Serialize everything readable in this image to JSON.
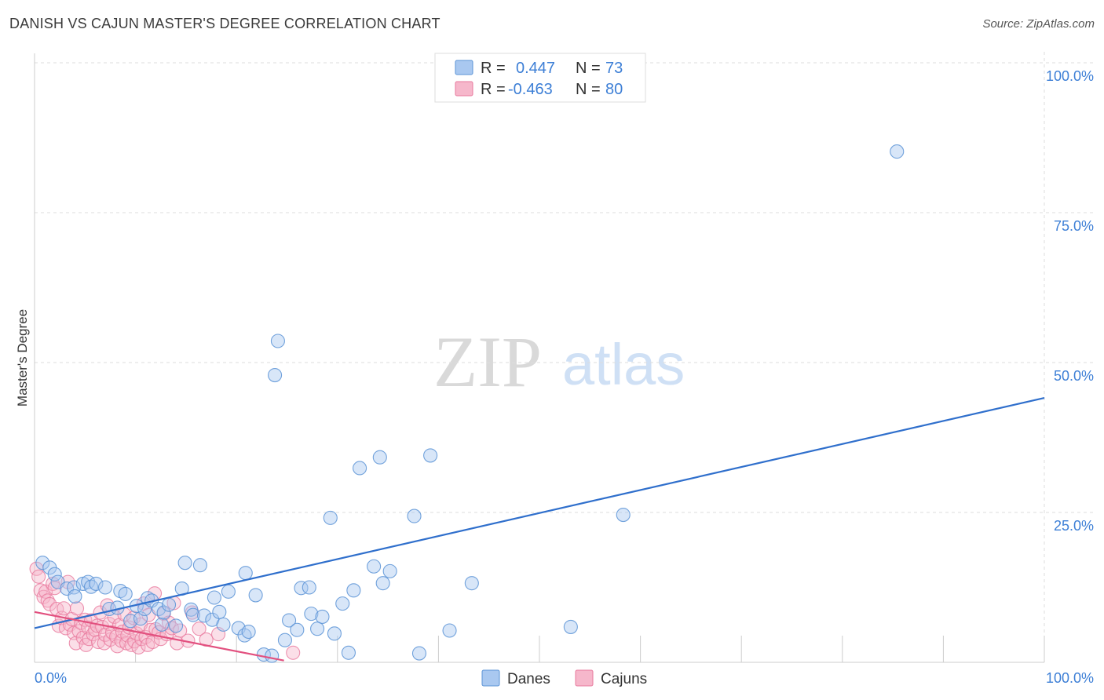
{
  "title": "DANISH VS CAJUN MASTER'S DEGREE CORRELATION CHART",
  "source": "Source: ZipAtlas.com",
  "watermark": {
    "zip": "ZIP",
    "atlas": "atlas"
  },
  "colors": {
    "danes_fill": "#a9c8f0",
    "danes_stroke": "#5b93d6",
    "danes_line": "#2f6fcc",
    "cajuns_fill": "#f6b7cb",
    "cajuns_stroke": "#e8799d",
    "cajuns_line": "#e2507f",
    "tick_blue": "#3d7fd6",
    "grid": "#dddddd"
  },
  "legend": {
    "rows": [
      {
        "r_label": "R =",
        "r_value": "0.447",
        "n_label": "N =",
        "n_value": "73"
      },
      {
        "r_label": "R =",
        "r_value": "-0.463",
        "n_label": "N =",
        "n_value": "80"
      }
    ]
  },
  "bottom_legend": [
    "Danes",
    "Cajuns"
  ],
  "chart_data": {
    "type": "scatter",
    "title": "DANISH VS CAJUN MASTER'S DEGREE CORRELATION CHART",
    "xlabel": "",
    "ylabel": "Master's Degree",
    "xlim": [
      0,
      100
    ],
    "ylim": [
      0,
      100
    ],
    "x_tick_labels": [
      "0.0%",
      "100.0%"
    ],
    "y_tick_labels": [
      "100.0%",
      "75.0%",
      "50.0%",
      "25.0%"
    ],
    "y_ticks": [
      100,
      75,
      50,
      25
    ],
    "grid": true,
    "legend_position": "top-center",
    "series": [
      {
        "name": "Danes",
        "r": 0.447,
        "n": 73,
        "trend": {
          "x": [
            0,
            100
          ],
          "y": [
            5.7,
            44.1
          ]
        },
        "points": [
          [
            0.8,
            16.6
          ],
          [
            1.5,
            15.8
          ],
          [
            2.0,
            14.7
          ],
          [
            2.3,
            13.4
          ],
          [
            3.2,
            12.3
          ],
          [
            3.9,
            12.5
          ],
          [
            4.0,
            11.0
          ],
          [
            4.8,
            13.1
          ],
          [
            5.3,
            13.4
          ],
          [
            5.6,
            12.6
          ],
          [
            6.1,
            13.1
          ],
          [
            7.0,
            12.5
          ],
          [
            7.4,
            8.9
          ],
          [
            8.2,
            9.1
          ],
          [
            8.5,
            11.9
          ],
          [
            9.0,
            11.4
          ],
          [
            9.5,
            6.9
          ],
          [
            10.1,
            9.4
          ],
          [
            10.5,
            7.3
          ],
          [
            10.9,
            8.9
          ],
          [
            11.2,
            10.7
          ],
          [
            11.6,
            10.3
          ],
          [
            12.3,
            8.9
          ],
          [
            12.6,
            6.3
          ],
          [
            12.8,
            8.3
          ],
          [
            13.3,
            9.6
          ],
          [
            14.0,
            6.1
          ],
          [
            14.6,
            12.3
          ],
          [
            14.9,
            16.6
          ],
          [
            15.5,
            8.8
          ],
          [
            15.7,
            7.9
          ],
          [
            16.4,
            16.2
          ],
          [
            16.8,
            7.8
          ],
          [
            17.6,
            7.1
          ],
          [
            17.8,
            10.8
          ],
          [
            18.3,
            8.4
          ],
          [
            18.7,
            6.3
          ],
          [
            19.2,
            11.8
          ],
          [
            20.2,
            5.7
          ],
          [
            20.8,
            4.5
          ],
          [
            20.9,
            14.9
          ],
          [
            21.2,
            5.1
          ],
          [
            21.9,
            11.2
          ],
          [
            22.7,
            1.3
          ],
          [
            23.5,
            1.1
          ],
          [
            24.1,
            53.6
          ],
          [
            24.8,
            3.7
          ],
          [
            23.8,
            47.9
          ],
          [
            25.2,
            7.0
          ],
          [
            26.0,
            5.4
          ],
          [
            26.4,
            12.4
          ],
          [
            27.2,
            12.5
          ],
          [
            27.4,
            8.1
          ],
          [
            28.0,
            5.6
          ],
          [
            28.5,
            7.6
          ],
          [
            29.3,
            24.1
          ],
          [
            29.7,
            4.8
          ],
          [
            30.5,
            9.8
          ],
          [
            31.1,
            1.6
          ],
          [
            31.6,
            12.0
          ],
          [
            32.2,
            32.4
          ],
          [
            33.6,
            16.0
          ],
          [
            34.2,
            34.2
          ],
          [
            34.5,
            13.2
          ],
          [
            35.2,
            15.2
          ],
          [
            37.6,
            24.4
          ],
          [
            38.1,
            1.5
          ],
          [
            39.2,
            34.5
          ],
          [
            41.1,
            5.3
          ],
          [
            43.3,
            13.2
          ],
          [
            53.1,
            5.9
          ],
          [
            58.3,
            24.6
          ],
          [
            85.4,
            85.2
          ]
        ]
      },
      {
        "name": "Cajuns",
        "r": -0.463,
        "n": 80,
        "trend": {
          "x": [
            0,
            24.7
          ],
          "y": [
            8.4,
            0.3
          ]
        },
        "points": [
          [
            0.2,
            15.6
          ],
          [
            0.4,
            14.3
          ],
          [
            0.6,
            12.0
          ],
          [
            0.9,
            10.9
          ],
          [
            1.1,
            11.8
          ],
          [
            1.3,
            10.3
          ],
          [
            1.5,
            9.7
          ],
          [
            1.8,
            13.1
          ],
          [
            2.0,
            12.4
          ],
          [
            2.2,
            8.9
          ],
          [
            2.4,
            6.1
          ],
          [
            2.7,
            7.4
          ],
          [
            2.9,
            9.0
          ],
          [
            3.1,
            5.7
          ],
          [
            3.3,
            13.4
          ],
          [
            3.5,
            6.3
          ],
          [
            3.7,
            7.2
          ],
          [
            3.9,
            4.9
          ],
          [
            4.1,
            3.2
          ],
          [
            4.2,
            9.0
          ],
          [
            4.4,
            5.2
          ],
          [
            4.6,
            6.6
          ],
          [
            4.8,
            4.1
          ],
          [
            5.0,
            7.1
          ],
          [
            5.1,
            2.9
          ],
          [
            5.3,
            5.8
          ],
          [
            5.4,
            3.9
          ],
          [
            5.6,
            7.0
          ],
          [
            5.8,
            4.7
          ],
          [
            6.0,
            5.4
          ],
          [
            6.2,
            6.1
          ],
          [
            6.3,
            3.4
          ],
          [
            6.5,
            8.3
          ],
          [
            6.7,
            5.9
          ],
          [
            6.9,
            3.2
          ],
          [
            7.0,
            4.6
          ],
          [
            7.2,
            9.5
          ],
          [
            7.4,
            6.4
          ],
          [
            7.5,
            3.8
          ],
          [
            7.7,
            5.0
          ],
          [
            7.9,
            7.6
          ],
          [
            8.1,
            4.3
          ],
          [
            8.2,
            2.7
          ],
          [
            8.4,
            6.2
          ],
          [
            8.6,
            3.6
          ],
          [
            8.7,
            5.1
          ],
          [
            8.9,
            8.0
          ],
          [
            9.1,
            3.2
          ],
          [
            9.2,
            4.5
          ],
          [
            9.4,
            5.8
          ],
          [
            9.6,
            2.9
          ],
          [
            9.8,
            7.4
          ],
          [
            9.9,
            3.5
          ],
          [
            10.1,
            4.8
          ],
          [
            10.3,
            2.5
          ],
          [
            10.5,
            6.3
          ],
          [
            10.6,
            3.9
          ],
          [
            10.8,
            9.8
          ],
          [
            11.0,
            4.2
          ],
          [
            11.2,
            2.9
          ],
          [
            11.3,
            7.9
          ],
          [
            11.5,
            5.4
          ],
          [
            11.7,
            3.4
          ],
          [
            11.9,
            11.5
          ],
          [
            12.0,
            5.5
          ],
          [
            12.3,
            5.0
          ],
          [
            12.5,
            3.9
          ],
          [
            12.8,
            8.1
          ],
          [
            13.1,
            4.7
          ],
          [
            13.3,
            6.6
          ],
          [
            13.6,
            5.7
          ],
          [
            13.8,
            9.9
          ],
          [
            14.1,
            3.2
          ],
          [
            14.4,
            5.3
          ],
          [
            15.2,
            3.6
          ],
          [
            15.6,
            8.3
          ],
          [
            16.3,
            5.6
          ],
          [
            17.0,
            3.8
          ],
          [
            18.2,
            4.7
          ],
          [
            25.6,
            1.6
          ]
        ]
      }
    ]
  }
}
